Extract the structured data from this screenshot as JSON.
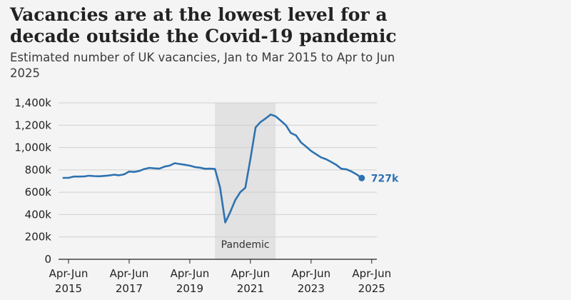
{
  "chart_data": {
    "type": "line",
    "title": "Vacancies are at the lowest level for a decade outside the Covid-19 pandemic",
    "subtitle": "Estimated number of UK vacancies, Jan to Mar 2015 to Apr to Jun 2025",
    "xlabel": "",
    "ylabel": "",
    "ylim": [
      0,
      1400
    ],
    "y_ticks": [
      {
        "value": 0,
        "label": "0"
      },
      {
        "value": 200,
        "label": "200k"
      },
      {
        "value": 400,
        "label": "400k"
      },
      {
        "value": 600,
        "label": "600k"
      },
      {
        "value": 800,
        "label": "800k"
      },
      {
        "value": 1000,
        "label": "1,000k"
      },
      {
        "value": 1200,
        "label": "1,200k"
      },
      {
        "value": 1400,
        "label": "1,400k"
      }
    ],
    "x_ticks": [
      {
        "x": 2015.33,
        "line1": "Apr-Jun",
        "line2": "2015"
      },
      {
        "x": 2017.33,
        "line1": "Apr-Jun",
        "line2": "2017"
      },
      {
        "x": 2019.33,
        "line1": "Apr-Jun",
        "line2": "2019"
      },
      {
        "x": 2021.33,
        "line1": "Apr-Jun",
        "line2": "2021"
      },
      {
        "x": 2023.33,
        "line1": "Apr-Jun",
        "line2": "2023"
      },
      {
        "x": 2025.33,
        "line1": "Apr-Jun",
        "line2": "2025"
      }
    ],
    "shaded_region": {
      "label": "Pandemic",
      "x_start": 2020.16,
      "x_end": 2022.16
    },
    "grid": true,
    "line_color": "#2e72b0",
    "grid_color": "#cfcfcf",
    "shade_color": "#e2e2e2",
    "end_label": "727k",
    "series": [
      {
        "points": [
          [
            2015.16,
            729
          ],
          [
            2015.33,
            729
          ],
          [
            2015.5,
            740
          ],
          [
            2015.66,
            740
          ],
          [
            2015.83,
            741
          ],
          [
            2016.0,
            748
          ],
          [
            2016.16,
            745
          ],
          [
            2016.33,
            743
          ],
          [
            2016.5,
            746
          ],
          [
            2016.66,
            750
          ],
          [
            2016.83,
            757
          ],
          [
            2017.0,
            752
          ],
          [
            2017.16,
            760
          ],
          [
            2017.33,
            785
          ],
          [
            2017.5,
            782
          ],
          [
            2017.66,
            790
          ],
          [
            2017.83,
            808
          ],
          [
            2018.0,
            818
          ],
          [
            2018.16,
            814
          ],
          [
            2018.33,
            811
          ],
          [
            2018.5,
            830
          ],
          [
            2018.66,
            838
          ],
          [
            2018.83,
            860
          ],
          [
            2019.0,
            853
          ],
          [
            2019.16,
            846
          ],
          [
            2019.33,
            838
          ],
          [
            2019.5,
            825
          ],
          [
            2019.66,
            820
          ],
          [
            2019.83,
            810
          ],
          [
            2020.0,
            811
          ],
          [
            2020.16,
            808
          ],
          [
            2020.33,
            640
          ],
          [
            2020.5,
            330
          ],
          [
            2020.66,
            420
          ],
          [
            2020.83,
            530
          ],
          [
            2021.0,
            603
          ],
          [
            2021.16,
            640
          ],
          [
            2021.33,
            900
          ],
          [
            2021.5,
            1180
          ],
          [
            2021.66,
            1228
          ],
          [
            2021.83,
            1260
          ],
          [
            2022.0,
            1296
          ],
          [
            2022.16,
            1280
          ],
          [
            2022.33,
            1240
          ],
          [
            2022.5,
            1200
          ],
          [
            2022.66,
            1130
          ],
          [
            2022.83,
            1110
          ],
          [
            2023.0,
            1045
          ],
          [
            2023.16,
            1010
          ],
          [
            2023.33,
            970
          ],
          [
            2023.5,
            940
          ],
          [
            2023.66,
            912
          ],
          [
            2023.83,
            895
          ],
          [
            2024.0,
            870
          ],
          [
            2024.16,
            845
          ],
          [
            2024.33,
            810
          ],
          [
            2024.5,
            805
          ],
          [
            2024.66,
            786
          ],
          [
            2024.83,
            760
          ],
          [
            2025.0,
            727
          ]
        ]
      }
    ]
  }
}
